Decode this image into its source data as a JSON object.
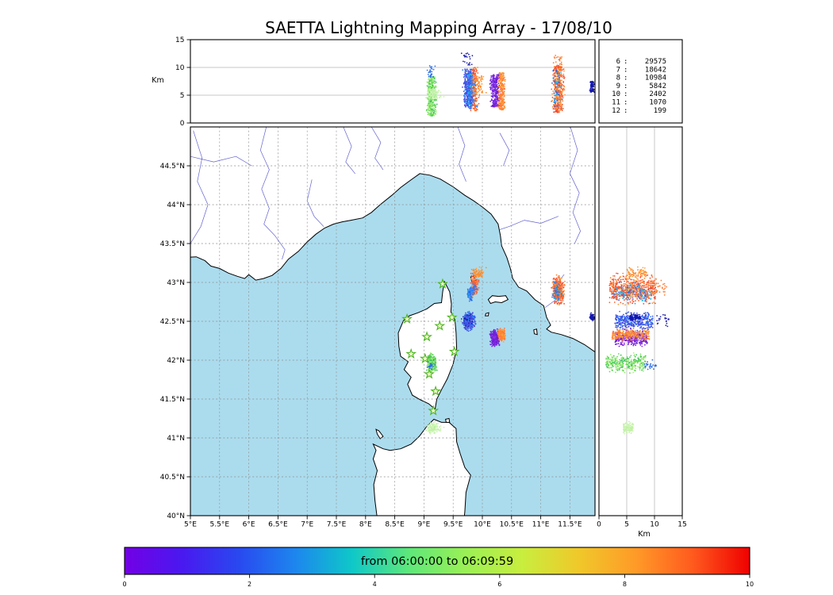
{
  "title": "SAETTA Lightning Mapping Array - 17/08/10",
  "chart_data": {
    "type": "scatter",
    "description": "Lightning mapping array composite: altitude-longitude panel (top), longitude-latitude map (center), altitude-latitude panel (right), source-count table, time colorbar",
    "axes": {
      "alt_label": "Km",
      "alt_label_bottom": "Km",
      "alt_ticks": [
        "0",
        "5",
        "10",
        "15"
      ],
      "alt_range": [
        0,
        15
      ],
      "alt_gridlines": [
        5,
        10
      ],
      "lon_tick_values": [
        5,
        5.5,
        6,
        6.5,
        7,
        7.5,
        8,
        8.5,
        9,
        9.5,
        10,
        10.5,
        11,
        11.5
      ],
      "lon_tick_labels": [
        "5°E",
        "5.5°E",
        "6°E",
        "6.5°E",
        "7°E",
        "7.5°E",
        "8°E",
        "8.5°E",
        "9°E",
        "9.5°E",
        "10°E",
        "10.5°E",
        "11°E",
        "11.5°E"
      ],
      "lat_tick_values": [
        40,
        40.5,
        41,
        41.5,
        42,
        42.5,
        43,
        43.5,
        44,
        44.5
      ],
      "lat_tick_labels": [
        "40°N",
        "40.5°N",
        "41°N",
        "41.5°N",
        "42°N",
        "42.5°N",
        "43°N",
        "43.5°N",
        "44°N",
        "44.5°N"
      ],
      "lon_range": [
        5,
        11.93
      ],
      "lat_range": [
        40,
        45.0
      ]
    },
    "flash_stats": {
      "rows": [
        {
          "level": "6",
          "count": "29575",
          "color": "#000000"
        },
        {
          "level": "7",
          "count": "18642",
          "color": "#ee0000"
        },
        {
          "level": "8",
          "count": "10984",
          "color": "#000000"
        },
        {
          "level": "9",
          "count": "5842",
          "color": "#000000"
        },
        {
          "level": "10",
          "count": "2402",
          "color": "#000000"
        },
        {
          "level": "11",
          "count": "1070",
          "color": "#000000"
        },
        {
          "level": "12",
          "count": "199",
          "color": "#000000"
        }
      ]
    },
    "colorbar": {
      "label": "from 06:00:00 to 06:09:59",
      "ticks": [
        "0",
        "2",
        "4",
        "6",
        "8",
        "10"
      ],
      "range": [
        0,
        10
      ],
      "stops": [
        "#7300e6",
        "#4a18f0",
        "#2948f0",
        "#1d86ee",
        "#0ec8c8",
        "#5ee87a",
        "#9af055",
        "#c8ee3e",
        "#f0c82a",
        "#ff9a28",
        "#ff5a1e",
        "#ef0000"
      ]
    },
    "stations": [
      {
        "lon": 9.32,
        "lat": 42.98
      },
      {
        "lon": 8.71,
        "lat": 42.53
      },
      {
        "lon": 9.48,
        "lat": 42.55
      },
      {
        "lon": 9.27,
        "lat": 42.44
      },
      {
        "lon": 9.05,
        "lat": 42.3
      },
      {
        "lon": 9.52,
        "lat": 42.11
      },
      {
        "lon": 8.78,
        "lat": 42.08
      },
      {
        "lon": 9.02,
        "lat": 42.02
      },
      {
        "lon": 9.09,
        "lat": 41.82
      },
      {
        "lon": 9.2,
        "lat": 41.6
      },
      {
        "lon": 9.16,
        "lat": 41.35
      }
    ],
    "cells": [
      {
        "name": "green-corsica",
        "lon": 9.13,
        "lat": 41.96,
        "dlon": 0.035,
        "dlat": 0.05,
        "alt": [
          1.2,
          8.4
        ],
        "n": 330,
        "colors": [
          "#63d94e",
          "#8ce86a",
          "#a9f07d",
          "#3fbf63"
        ]
      },
      {
        "name": "green-high-blue",
        "lon": 9.13,
        "lat": 41.93,
        "dlon": 0.03,
        "dlat": 0.04,
        "alt": [
          8.2,
          10.3
        ],
        "n": 25,
        "colors": [
          "#2f6fe8"
        ]
      },
      {
        "name": "palegreen-south",
        "lon": 9.17,
        "lat": 41.13,
        "dlon": 0.06,
        "dlat": 0.03,
        "alt": [
          4.4,
          6.2
        ],
        "n": 130,
        "colors": [
          "#b9f09c",
          "#cdf5b4"
        ]
      },
      {
        "name": "blue-central",
        "lon": 9.77,
        "lat": 42.5,
        "dlon": 0.045,
        "dlat": 0.05,
        "alt": [
          2.9,
          9.7
        ],
        "n": 380,
        "colors": [
          "#3b52e8",
          "#5045d5",
          "#2e7ef5"
        ]
      },
      {
        "name": "blue-high",
        "lon": 9.75,
        "lat": 42.52,
        "dlon": 0.05,
        "dlat": 0.04,
        "alt": [
          10.2,
          12.6
        ],
        "n": 22,
        "colors": [
          "#2222aa"
        ]
      },
      {
        "name": "blue-north",
        "lon": 9.79,
        "lat": 42.85,
        "dlon": 0.02,
        "dlat": 0.035,
        "alt": [
          2.6,
          9.0
        ],
        "n": 110,
        "colors": [
          "#2e7ef5",
          "#3b52e8",
          "#18b8e8"
        ]
      },
      {
        "name": "purple",
        "lon": 10.22,
        "lat": 42.28,
        "dlon": 0.035,
        "dlat": 0.045,
        "alt": [
          2.9,
          8.7
        ],
        "n": 320,
        "colors": [
          "#7c22dd",
          "#5f1fd0",
          "#8d35e8"
        ]
      },
      {
        "name": "orange-mid",
        "lon": 10.33,
        "lat": 42.33,
        "dlon": 0.028,
        "dlat": 0.035,
        "alt": [
          2.3,
          9.1
        ],
        "n": 270,
        "colors": [
          "#ff8a28",
          "#ff7742",
          "#ffa23a"
        ]
      },
      {
        "name": "orange-north",
        "lon": 9.87,
        "lat": 42.97,
        "dlon": 0.03,
        "dlat": 0.07,
        "alt": [
          2.1,
          10.1
        ],
        "n": 160,
        "colors": [
          "#ff8a28",
          "#ff6a3c",
          "#f5543c"
        ]
      },
      {
        "name": "orange-north-blue",
        "lon": 9.85,
        "lat": 42.9,
        "dlon": 0.025,
        "dlat": 0.04,
        "alt": [
          2.5,
          8.0
        ],
        "n": 40,
        "colors": [
          "#2e7ef5"
        ]
      },
      {
        "name": "orange-east",
        "lon": 11.3,
        "lat": 42.9,
        "dlon": 0.045,
        "dlat": 0.075,
        "alt": [
          1.9,
          10.4
        ],
        "n": 420,
        "colors": [
          "#ff8030",
          "#ff5a2e",
          "#ff9a40",
          "#f04830"
        ]
      },
      {
        "name": "orange-east-blue",
        "lon": 11.28,
        "lat": 42.88,
        "dlon": 0.04,
        "dlat": 0.06,
        "alt": [
          2.5,
          9.5
        ],
        "n": 60,
        "colors": [
          "#2e6ae8",
          "#18b8e8"
        ]
      },
      {
        "name": "orange-east-high",
        "lon": 11.3,
        "lat": 42.93,
        "dlon": 0.05,
        "dlat": 0.05,
        "alt": [
          10.5,
          12.2
        ],
        "n": 18,
        "colors": [
          "#ff7a30"
        ]
      },
      {
        "name": "orange-tail",
        "lon": 9.93,
        "lat": 43.12,
        "dlon": 0.06,
        "dlat": 0.03,
        "alt": [
          4.8,
          8.6
        ],
        "n": 70,
        "colors": [
          "#ffa040",
          "#ff8a28"
        ]
      },
      {
        "name": "navy-edge",
        "lon": 11.88,
        "lat": 42.55,
        "dlon": 0.018,
        "dlat": 0.02,
        "alt": [
          5.5,
          7.5
        ],
        "n": 90,
        "colors": [
          "#1518b0"
        ]
      }
    ],
    "geo": {
      "mainland": [
        [
          4.88,
          43.32
        ],
        [
          5.1,
          43.33
        ],
        [
          5.25,
          43.28
        ],
        [
          5.35,
          43.21
        ],
        [
          5.5,
          43.18
        ],
        [
          5.65,
          43.12
        ],
        [
          5.8,
          43.08
        ],
        [
          5.93,
          43.05
        ],
        [
          6.0,
          43.1
        ],
        [
          6.12,
          43.03
        ],
        [
          6.25,
          43.05
        ],
        [
          6.4,
          43.09
        ],
        [
          6.55,
          43.18
        ],
        [
          6.68,
          43.3
        ],
        [
          6.85,
          43.4
        ],
        [
          7.0,
          43.52
        ],
        [
          7.15,
          43.62
        ],
        [
          7.3,
          43.7
        ],
        [
          7.45,
          43.75
        ],
        [
          7.6,
          43.78
        ],
        [
          7.75,
          43.8
        ],
        [
          7.95,
          43.83
        ],
        [
          8.1,
          43.9
        ],
        [
          8.25,
          44.0
        ],
        [
          8.45,
          44.12
        ],
        [
          8.6,
          44.22
        ],
        [
          8.78,
          44.32
        ],
        [
          8.93,
          44.4
        ],
        [
          9.1,
          44.38
        ],
        [
          9.28,
          44.33
        ],
        [
          9.5,
          44.23
        ],
        [
          9.7,
          44.12
        ],
        [
          9.85,
          44.05
        ],
        [
          10.0,
          43.97
        ],
        [
          10.15,
          43.88
        ],
        [
          10.27,
          43.75
        ],
        [
          10.31,
          43.6
        ],
        [
          10.33,
          43.47
        ],
        [
          10.42,
          43.32
        ],
        [
          10.48,
          43.18
        ],
        [
          10.52,
          43.05
        ],
        [
          10.62,
          42.94
        ],
        [
          10.76,
          42.89
        ],
        [
          10.9,
          42.78
        ],
        [
          11.05,
          42.7
        ],
        [
          11.1,
          42.55
        ],
        [
          11.17,
          42.45
        ],
        [
          11.1,
          42.4
        ],
        [
          11.18,
          42.36
        ],
        [
          11.35,
          42.33
        ],
        [
          11.55,
          42.28
        ],
        [
          11.75,
          42.2
        ],
        [
          11.98,
          42.08
        ],
        [
          12.05,
          45.2
        ],
        [
          4.85,
          45.2
        ]
      ],
      "corsica": [
        [
          9.35,
          43.01
        ],
        [
          9.44,
          42.88
        ],
        [
          9.47,
          42.72
        ],
        [
          9.46,
          42.62
        ],
        [
          9.53,
          42.52
        ],
        [
          9.55,
          42.35
        ],
        [
          9.56,
          42.15
        ],
        [
          9.5,
          41.95
        ],
        [
          9.4,
          41.76
        ],
        [
          9.3,
          41.62
        ],
        [
          9.22,
          41.5
        ],
        [
          9.19,
          41.37
        ],
        [
          9.08,
          41.44
        ],
        [
          8.94,
          41.49
        ],
        [
          8.8,
          41.55
        ],
        [
          8.72,
          41.69
        ],
        [
          8.78,
          41.78
        ],
        [
          8.66,
          41.88
        ],
        [
          8.73,
          41.98
        ],
        [
          8.6,
          42.05
        ],
        [
          8.57,
          42.18
        ],
        [
          8.56,
          42.35
        ],
        [
          8.65,
          42.51
        ],
        [
          8.75,
          42.57
        ],
        [
          8.9,
          42.61
        ],
        [
          9.05,
          42.66
        ],
        [
          9.18,
          42.73
        ],
        [
          9.3,
          42.74
        ],
        [
          9.32,
          42.88
        ]
      ],
      "sardinia": [
        [
          8.21,
          39.9
        ],
        [
          8.16,
          40.2
        ],
        [
          8.14,
          40.4
        ],
        [
          8.2,
          40.58
        ],
        [
          8.13,
          40.73
        ],
        [
          8.18,
          40.84
        ],
        [
          8.13,
          40.92
        ],
        [
          8.3,
          40.86
        ],
        [
          8.42,
          40.84
        ],
        [
          8.6,
          40.86
        ],
        [
          8.78,
          40.92
        ],
        [
          8.92,
          41.02
        ],
        [
          9.05,
          41.15
        ],
        [
          9.17,
          41.24
        ],
        [
          9.3,
          41.2
        ],
        [
          9.43,
          41.2
        ],
        [
          9.55,
          41.12
        ],
        [
          9.56,
          40.95
        ],
        [
          9.62,
          40.8
        ],
        [
          9.7,
          40.62
        ],
        [
          9.8,
          40.52
        ],
        [
          9.72,
          40.3
        ],
        [
          9.7,
          40.05
        ],
        [
          9.68,
          39.9
        ]
      ],
      "islands": [
        [
          [
            10.1,
            42.78
          ],
          [
            10.17,
            42.83
          ],
          [
            10.28,
            42.82
          ],
          [
            10.4,
            42.83
          ],
          [
            10.44,
            42.78
          ],
          [
            10.33,
            42.74
          ],
          [
            10.22,
            42.75
          ],
          [
            10.14,
            42.73
          ]
        ],
        [
          [
            9.8,
            43.07
          ],
          [
            9.86,
            43.08
          ],
          [
            9.88,
            43.02
          ],
          [
            9.82,
            43.01
          ]
        ],
        [
          [
            10.06,
            42.6
          ],
          [
            10.11,
            42.61
          ],
          [
            10.1,
            42.57
          ],
          [
            10.05,
            42.57
          ]
        ],
        [
          [
            10.28,
            42.35
          ],
          [
            10.33,
            42.36
          ],
          [
            10.34,
            42.31
          ],
          [
            10.29,
            42.31
          ]
        ],
        [
          [
            10.88,
            42.39
          ],
          [
            10.93,
            42.4
          ],
          [
            10.94,
            42.33
          ],
          [
            10.89,
            42.34
          ]
        ],
        [
          [
            8.18,
            41.11
          ],
          [
            8.23,
            41.09
          ],
          [
            8.3,
            41.02
          ],
          [
            8.25,
            40.99
          ],
          [
            8.2,
            41.05
          ]
        ],
        [
          [
            9.37,
            41.24
          ],
          [
            9.43,
            41.25
          ],
          [
            9.44,
            41.2
          ],
          [
            9.38,
            41.2
          ]
        ]
      ],
      "rivers": [
        [
          [
            5.05,
            44.95
          ],
          [
            5.2,
            44.6
          ],
          [
            5.12,
            44.3
          ],
          [
            5.3,
            44.0
          ],
          [
            5.18,
            43.72
          ],
          [
            5.0,
            43.5
          ]
        ],
        [
          [
            5.0,
            44.62
          ],
          [
            5.4,
            44.55
          ],
          [
            5.78,
            44.62
          ],
          [
            6.05,
            44.5
          ]
        ],
        [
          [
            6.3,
            45.0
          ],
          [
            6.2,
            44.7
          ],
          [
            6.35,
            44.45
          ],
          [
            6.22,
            44.2
          ],
          [
            6.35,
            43.95
          ],
          [
            6.26,
            43.75
          ],
          [
            6.45,
            43.6
          ],
          [
            6.62,
            43.42
          ],
          [
            6.57,
            43.3
          ]
        ],
        [
          [
            7.08,
            44.32
          ],
          [
            7.0,
            44.05
          ],
          [
            7.12,
            43.85
          ],
          [
            7.28,
            43.72
          ]
        ],
        [
          [
            7.62,
            45.0
          ],
          [
            7.76,
            44.75
          ],
          [
            7.66,
            44.55
          ],
          [
            7.82,
            44.4
          ]
        ],
        [
          [
            8.1,
            45.0
          ],
          [
            8.26,
            44.8
          ],
          [
            8.16,
            44.6
          ],
          [
            8.3,
            44.45
          ]
        ],
        [
          [
            9.58,
            45.0
          ],
          [
            9.7,
            44.76
          ],
          [
            9.6,
            44.52
          ],
          [
            9.72,
            44.3
          ]
        ],
        [
          [
            10.3,
            44.92
          ],
          [
            10.46,
            44.7
          ],
          [
            10.36,
            44.5
          ]
        ],
        [
          [
            11.3,
            43.85
          ],
          [
            11.0,
            43.76
          ],
          [
            10.72,
            43.8
          ],
          [
            10.46,
            43.72
          ],
          [
            10.3,
            43.68
          ]
        ],
        [
          [
            11.5,
            45.02
          ],
          [
            11.63,
            44.7
          ],
          [
            11.5,
            44.4
          ],
          [
            11.66,
            44.15
          ],
          [
            11.55,
            43.9
          ],
          [
            11.68,
            43.66
          ],
          [
            11.58,
            43.5
          ]
        ],
        [
          [
            11.4,
            43.1
          ],
          [
            11.24,
            42.95
          ],
          [
            11.3,
            42.8
          ],
          [
            11.08,
            42.68
          ]
        ]
      ]
    },
    "style": {
      "sea": "#abdcee",
      "land": "#ffffff",
      "coast": "#000000",
      "grid": "#8f8f8f",
      "river": "#4848c8",
      "station_fill": "#f2ffc8",
      "station_edge": "#4db520"
    }
  }
}
